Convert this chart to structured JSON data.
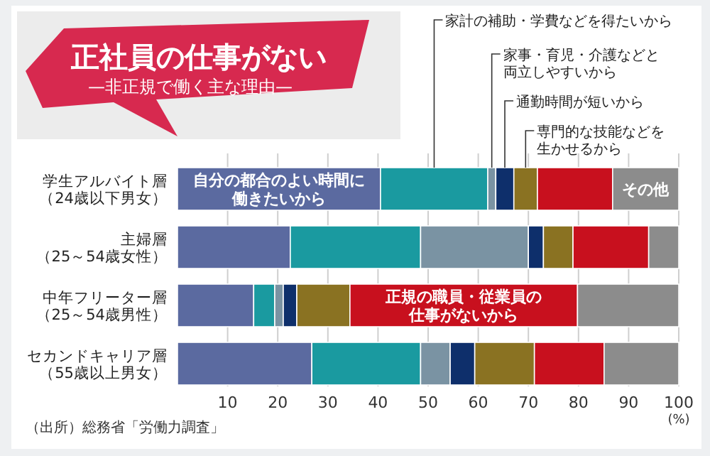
{
  "chart_data": {
    "type": "bar",
    "orientation": "horizontal",
    "stacked": true,
    "title": "正社員の仕事がない",
    "subtitle": "—非正規で働く主な理由—",
    "xlabel": "(%)",
    "categories": [
      "学生アルバイト層（24歳以下男女）",
      "主婦層（25～54歳女性）",
      "中年フリーター層（25～54歳男性）",
      "セカンドキャリア層（55歳以上男女）"
    ],
    "series": [
      {
        "name": "自分の都合のよい時間に働きたいから",
        "color": "#5b6aa0",
        "values": [
          40.5,
          22.5,
          15.2,
          26.8
        ]
      },
      {
        "name": "家計の補助・学費などを得たいから",
        "color": "#1a9aa0",
        "values": [
          21.4,
          26.0,
          4.2,
          21.7
        ]
      },
      {
        "name": "家事・育児・介護などと両立しやすいから",
        "color": "#7a93a3",
        "values": [
          1.6,
          21.5,
          1.7,
          5.9
        ]
      },
      {
        "name": "通勤時間が短いから",
        "color": "#0e2f6b",
        "values": [
          3.6,
          3.0,
          2.7,
          4.9
        ]
      },
      {
        "name": "専門的な技能などを生かせるから",
        "color": "#8a7222",
        "values": [
          4.7,
          5.9,
          10.6,
          11.9
        ]
      },
      {
        "name": "正規の職員・従業員の仕事がないから",
        "color": "#c8101e",
        "values": [
          15.0,
          15.1,
          45.4,
          13.9
        ]
      },
      {
        "name": "その他",
        "color": "#8c8c8c",
        "values": [
          13.2,
          6.0,
          20.2,
          14.9
        ]
      }
    ],
    "xlim": [
      0,
      100
    ],
    "xticks": [
      10,
      20,
      30,
      40,
      50,
      60,
      70,
      80,
      90,
      100
    ],
    "grid": "x",
    "legend": false,
    "annotations": [
      "（出所）総務省「労働力調査」"
    ]
  }
}
